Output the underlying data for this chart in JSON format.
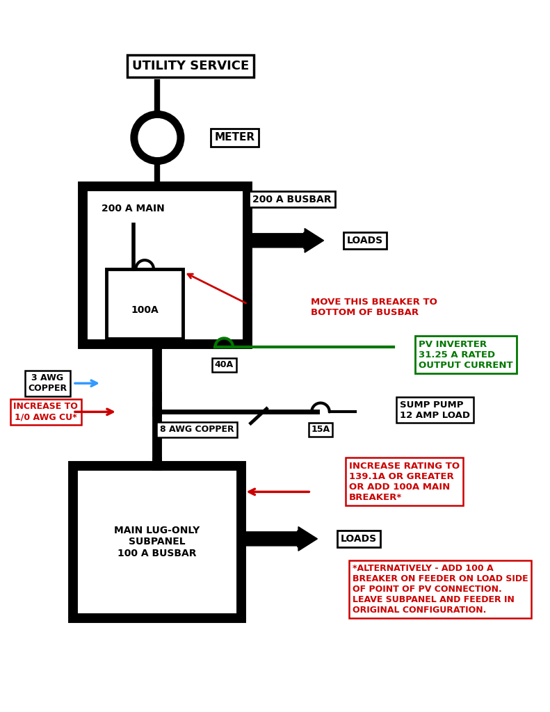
{
  "bg_color": "#ffffff",
  "black": "#000000",
  "red": "#cc0000",
  "green": "#007700",
  "blue": "#3399ff",
  "title": "UTILITY SERVICE",
  "meter_label": "METER",
  "panel1_label": "200 A MAIN",
  "panel1_busbar": "200 A BUSBAR",
  "panel1_breaker": "100A",
  "panel1_loads": "LOADS",
  "pv_breaker": "40A",
  "pv_label": "PV INVERTER\n31.25 A RATED\nOUTPUT CURRENT",
  "move_breaker": "MOVE THIS BREAKER TO\nBOTTOM OF BUSBAR",
  "wire1_label": "3 AWG\nCOPPER",
  "wire1_increase": "INCREASE TO\n1/0 AWG CU*",
  "wire2_label": "8 AWG COPPER",
  "sump_breaker": "15A",
  "sump_label": "SUMP PUMP\n12 AMP LOAD",
  "panel2_label": "MAIN LUG-ONLY\nSUBPANEL\n100 A BUSBAR",
  "panel2_loads": "LOADS",
  "increase_rating": "INCREASE RATING TO\n139.1A OR GREATER\nOR ADD 100A MAIN\nBREAKER*",
  "alt_note": "*ALTERNATIVELY - ADD 100 A\nBREAKER ON FEEDER ON LOAD SIDE\nOF POINT OF PV CONNECTION.\nLEAVE SUBPANEL AND FEEDER IN\nORIGINAL CONFIGURATION."
}
